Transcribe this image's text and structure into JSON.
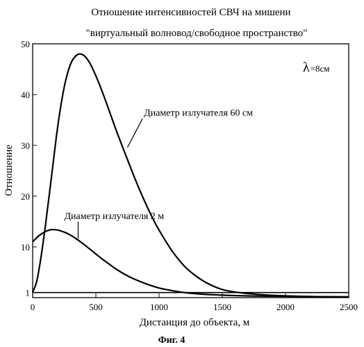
{
  "chart_data": {
    "type": "line",
    "title": "Отношение интенсивностей СВЧ на мишени",
    "subtitle": "\"виртуальный волновод/свободное пространство\"",
    "xlabel": "Дистанция до объекта, м",
    "ylabel": "Отношение",
    "xlim": [
      0,
      2500
    ],
    "ylim": [
      0,
      50
    ],
    "x_ticks": [
      "0",
      "500",
      "1000",
      "1500",
      "2000",
      "2500"
    ],
    "y_ticks": [
      "1",
      "10",
      "20",
      "30",
      "40",
      "50"
    ],
    "y_tick_values": [
      1,
      10,
      20,
      30,
      40,
      50
    ],
    "grid": false,
    "lambda_label": "λ=8см",
    "figure_caption": "Фиг. 4",
    "annotations": [
      {
        "text": "Диаметр излучателя 60 см",
        "x": 880,
        "y": 35.8,
        "arrow_to_x": 750,
        "arrow_to_y": 29.6
      },
      {
        "text": "Диаметр излучателя 2 м",
        "x": 250,
        "y": 15.5,
        "arrow_to_x": 360,
        "arrow_to_y": 11.6
      }
    ],
    "series": [
      {
        "x": [
          0,
          30,
          60,
          100,
          150,
          200,
          250,
          300,
          350,
          400,
          450,
          500,
          550,
          600,
          650,
          700,
          750,
          800,
          850,
          900,
          950,
          1000,
          1100,
          1200,
          1300,
          1400,
          1500,
          1600,
          1700,
          1800,
          1900,
          2000,
          2100,
          2200,
          2300,
          2400,
          2500
        ],
        "y": [
          1.1,
          3,
          7,
          14,
          24,
          34,
          41.5,
          46,
          47.8,
          47.8,
          46.3,
          43.7,
          40.6,
          37.2,
          33.7,
          30.4,
          27.2,
          24,
          21,
          18.2,
          15.6,
          13.3,
          9.3,
          6.2,
          4.1,
          2.6,
          1.6,
          1.1,
          0.8,
          0.6,
          0.45,
          0.35,
          0.28,
          0.22,
          0.18,
          0.15,
          0.12
        ]
      },
      {
        "x": [
          0,
          20,
          50,
          100,
          150,
          200,
          250,
          300,
          350,
          400,
          450,
          500,
          550,
          600,
          650,
          700,
          750,
          800,
          900,
          1000,
          1100,
          1200,
          1300,
          1400,
          1500,
          1600,
          1800,
          2000,
          2200,
          2500
        ],
        "y": [
          11,
          11.5,
          12.2,
          13,
          13.4,
          13.3,
          12.9,
          12.3,
          11.5,
          10.6,
          9.6,
          8.6,
          7.6,
          6.7,
          5.8,
          5.0,
          4.3,
          3.7,
          2.7,
          1.9,
          1.4,
          1.0,
          0.75,
          0.6,
          0.5,
          0.4,
          0.3,
          0.25,
          0.2,
          0.15
        ]
      },
      {
        "x": [
          0,
          2500
        ],
        "y": [
          1,
          1
        ]
      }
    ]
  }
}
